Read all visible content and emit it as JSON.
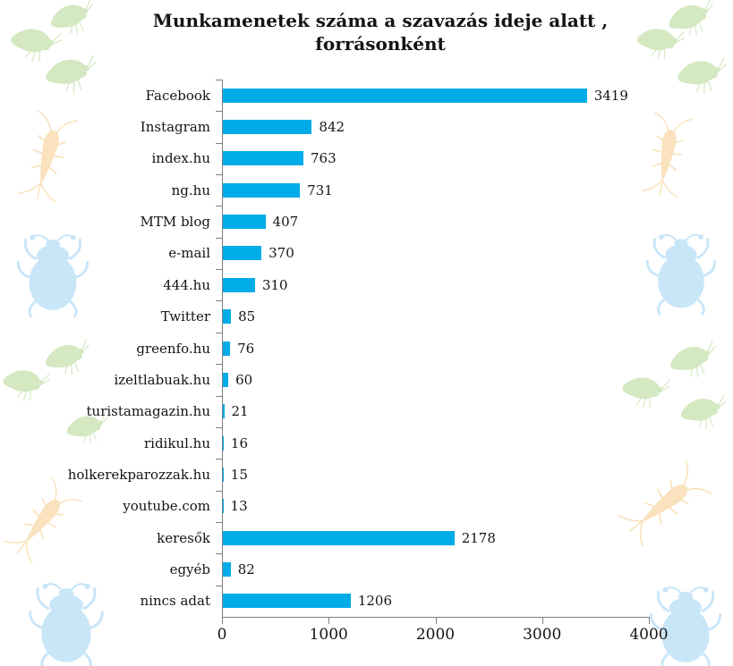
{
  "title": {
    "lines": [
      "Munkamenetek száma a szavazás ideje alatt ,",
      "forrásonként"
    ]
  },
  "colors": {
    "bar": "#00ACE8",
    "axis": "#7F7F7F",
    "text": "#141414",
    "fly": "#D4E8C2",
    "silverfish": "#F9E2BD",
    "beetle": "#C9E6F8",
    "background": "#FFFFFF"
  },
  "decor_icons": [
    "fly-icon",
    "silverfish-icon",
    "beetle-icon"
  ],
  "chart_data": {
    "type": "bar",
    "orientation": "horizontal",
    "title": "Munkamenetek száma a szavazás ideje alatt , forrásonként",
    "categories": [
      "Facebook",
      "Instagram",
      "index.hu",
      "ng.hu",
      "MTM blog",
      "e-mail",
      "444.hu",
      "Twitter",
      "greenfo.hu",
      "izeltlabuak.hu",
      "turistamagazin.hu",
      "ridikul.hu",
      "holkerekparozzak.hu",
      "youtube.com",
      "keresők",
      "egyéb",
      "nincs adat"
    ],
    "values": [
      3419,
      842,
      763,
      731,
      407,
      370,
      310,
      85,
      76,
      60,
      21,
      16,
      15,
      13,
      2178,
      82,
      1206
    ],
    "x_ticks": [
      0,
      1000,
      2000,
      3000,
      4000
    ],
    "xlim": [
      0,
      4000
    ],
    "grid": false,
    "legend": false,
    "value_labels": true
  }
}
